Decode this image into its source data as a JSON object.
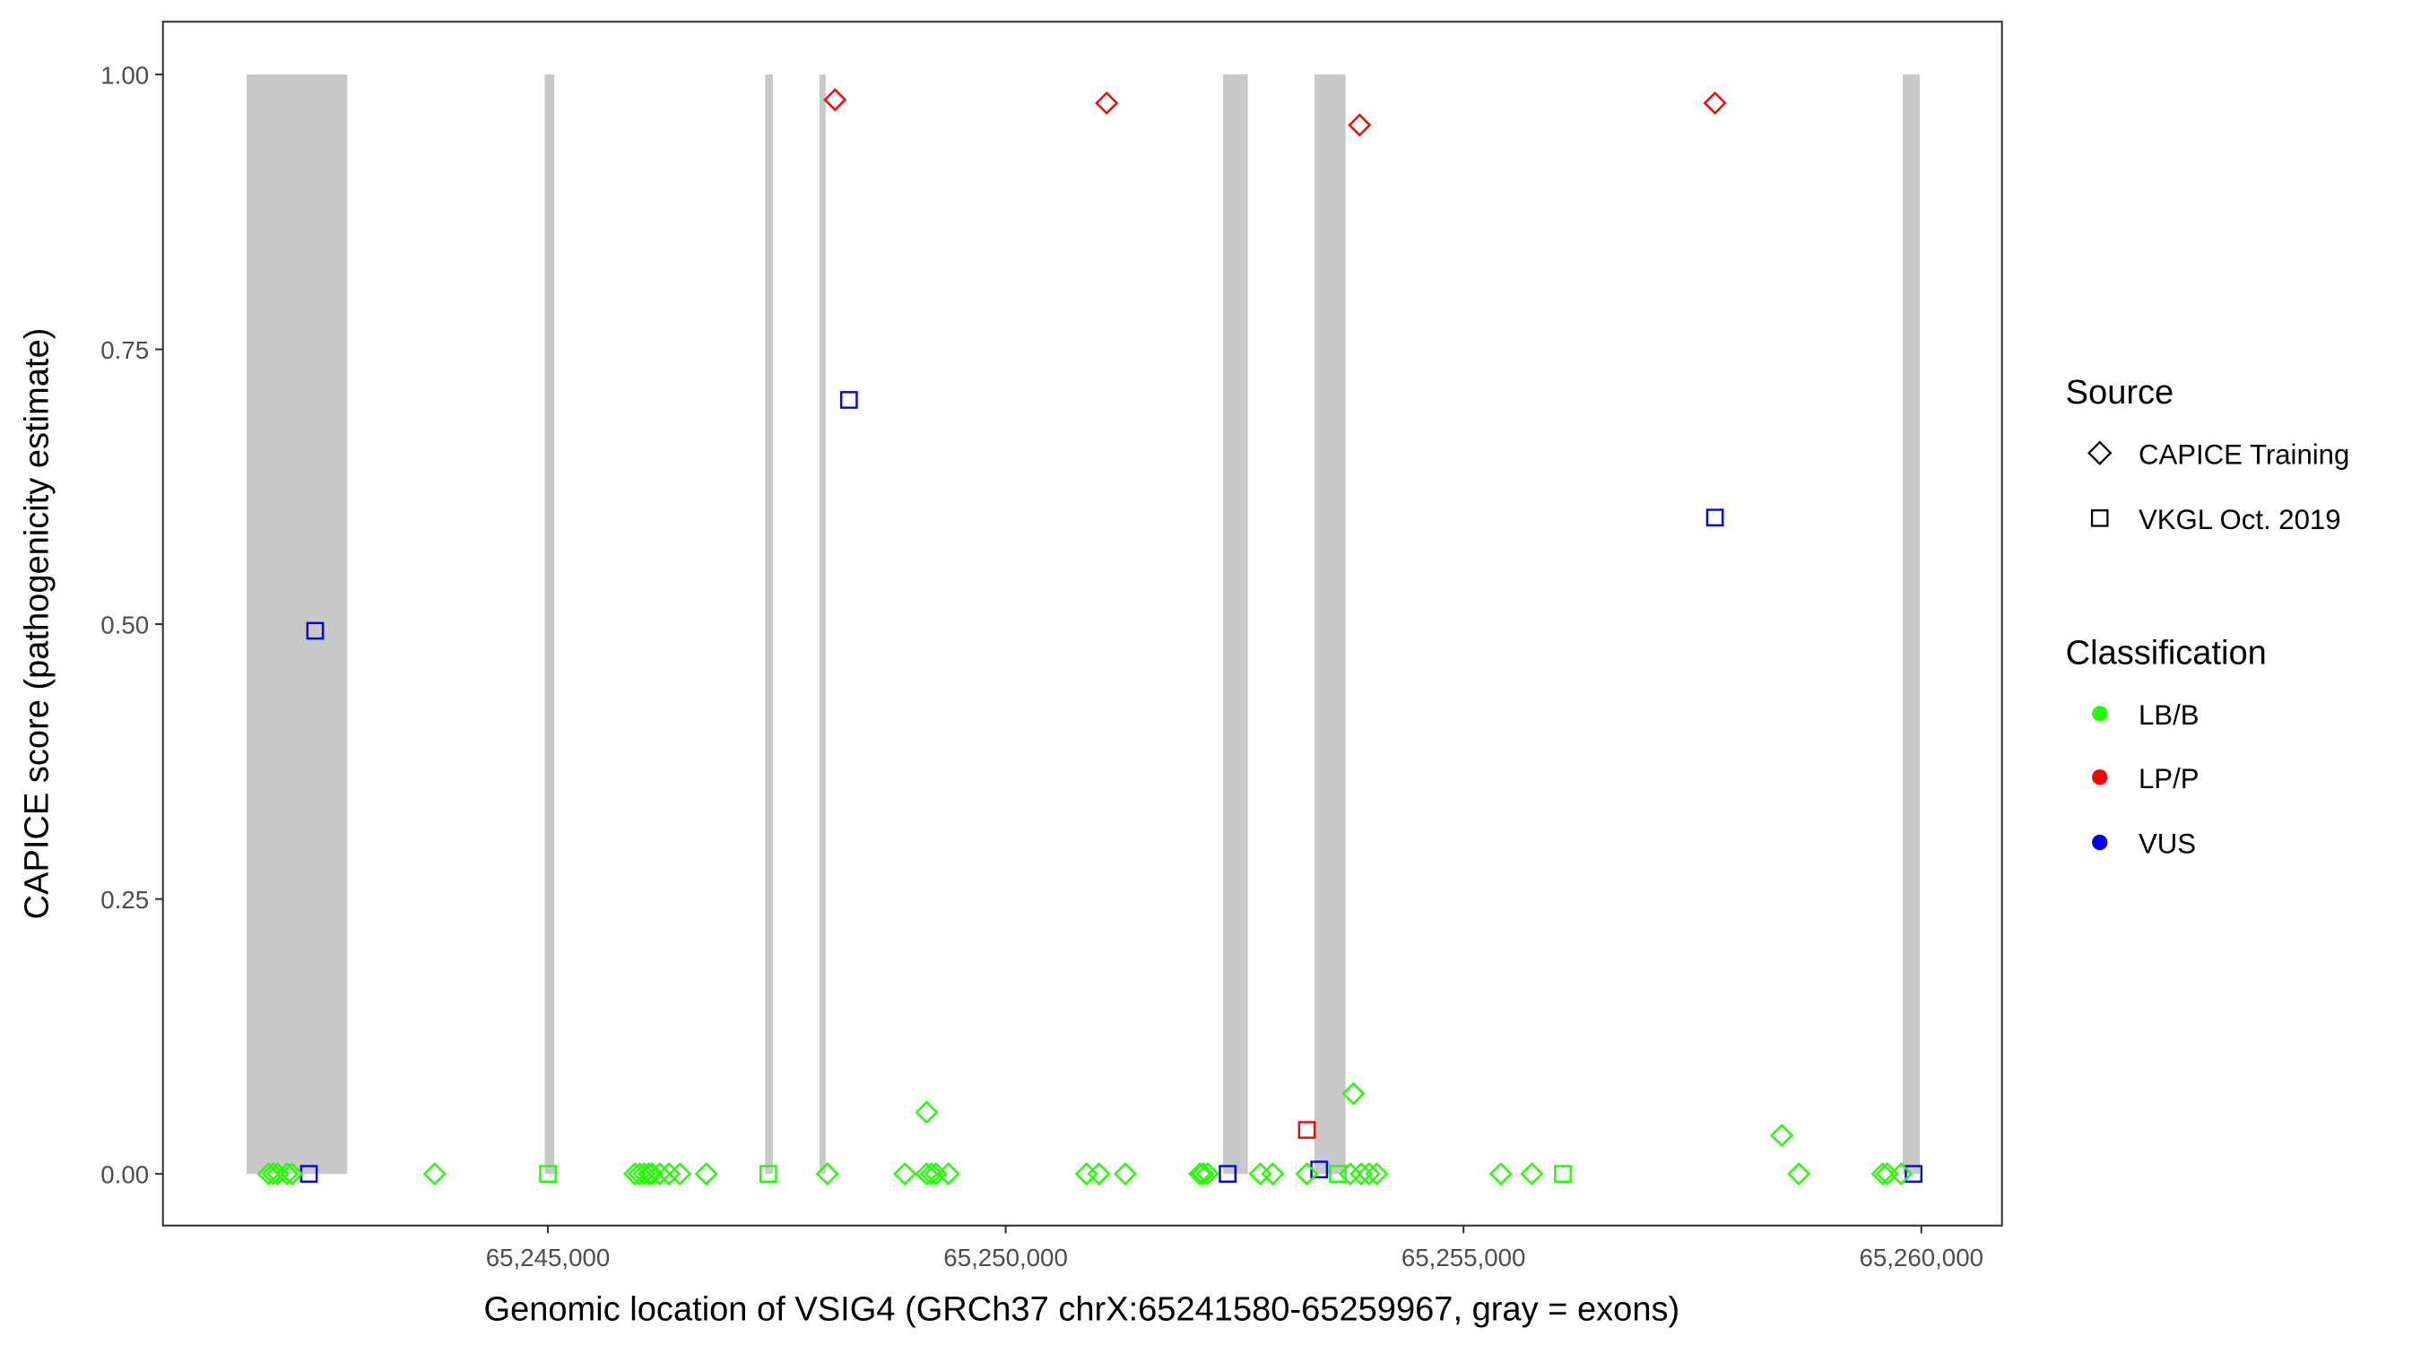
{
  "chart_data": {
    "type": "scatter",
    "xlabel": "Genomic location of VSIG4 (GRCh37 chrX:65241580-65259967, gray = exons)",
    "ylabel": "CAPICE score (pathogenicity estimate)",
    "xlim": [
      65240796,
      65260881
    ],
    "ylim": [
      -0.047,
      1.048
    ],
    "x_ticks": [
      65245000,
      65250000,
      65255000,
      65260000
    ],
    "x_tick_labels": [
      "65,245,000",
      "65,250,000",
      "65,255,000",
      "65,260,000"
    ],
    "y_ticks": [
      0,
      0.25,
      0.5,
      0.75,
      1.0
    ],
    "y_tick_labels": [
      "0.00",
      "0.25",
      "0.50",
      "0.75",
      "1.00"
    ],
    "grid": false,
    "exons": [
      [
        65241710,
        65242810
      ],
      [
        65244965,
        65245070
      ],
      [
        65247373,
        65247458
      ],
      [
        65247966,
        65248034
      ],
      [
        65252373,
        65252644
      ],
      [
        65253373,
        65253712
      ],
      [
        65259797,
        65259983
      ]
    ],
    "exon_color": "#C8C8C8",
    "legend": {
      "placement": "right",
      "source_title": "Source",
      "source_items": [
        {
          "label": "CAPICE Training",
          "shape": "diamond"
        },
        {
          "label": "VKGL Oct. 2019",
          "shape": "square"
        }
      ],
      "class_title": "Classification",
      "class_items": [
        {
          "label": "LB/B",
          "color": "#22FF00"
        },
        {
          "label": "LP/P",
          "color": "#FF0000"
        },
        {
          "label": "VUS",
          "color": "#0000FF"
        }
      ]
    },
    "points": [
      {
        "x": 65248136,
        "y": 0.977,
        "cls": "LP/P",
        "src": "CAPICE Training"
      },
      {
        "x": 65251102,
        "y": 0.974,
        "cls": "LP/P",
        "src": "CAPICE Training"
      },
      {
        "x": 65253865,
        "y": 0.954,
        "cls": "LP/P",
        "src": "CAPICE Training"
      },
      {
        "x": 65257746,
        "y": 0.974,
        "cls": "LP/P",
        "src": "CAPICE Training"
      },
      {
        "x": 65253289,
        "y": 0.04,
        "cls": "LP/P",
        "src": "VKGL Oct. 2019"
      },
      {
        "x": 65248288,
        "y": 0.704,
        "cls": "VUS",
        "src": "VKGL Oct. 2019"
      },
      {
        "x": 65242458,
        "y": 0.494,
        "cls": "VUS",
        "src": "VKGL Oct. 2019"
      },
      {
        "x": 65257746,
        "y": 0.597,
        "cls": "VUS",
        "src": "VKGL Oct. 2019"
      },
      {
        "x": 65242390,
        "y": 0.0,
        "cls": "VUS",
        "src": "VKGL Oct. 2019"
      },
      {
        "x": 65252424,
        "y": 0.0,
        "cls": "VUS",
        "src": "VKGL Oct. 2019"
      },
      {
        "x": 65253424,
        "y": 0.004,
        "cls": "VUS",
        "src": "VKGL Oct. 2019"
      },
      {
        "x": 65259916,
        "y": 0.0,
        "cls": "VUS",
        "src": "VKGL Oct. 2019"
      },
      {
        "x": 65249136,
        "y": 0.056,
        "cls": "LB/B",
        "src": "CAPICE Training"
      },
      {
        "x": 65253797,
        "y": 0.073,
        "cls": "LB/B",
        "src": "CAPICE Training"
      },
      {
        "x": 65258475,
        "y": 0.035,
        "cls": "LB/B",
        "src": "CAPICE Training"
      },
      {
        "x": 65245000,
        "y": 0.0,
        "cls": "LB/B",
        "src": "VKGL Oct. 2019"
      },
      {
        "x": 65247407,
        "y": 0.0,
        "cls": "LB/B",
        "src": "VKGL Oct. 2019"
      },
      {
        "x": 65253628,
        "y": 0.0,
        "cls": "LB/B",
        "src": "VKGL Oct. 2019"
      },
      {
        "x": 65256085,
        "y": 0.0,
        "cls": "LB/B",
        "src": "VKGL Oct. 2019"
      },
      {
        "x": 65241949,
        "y": 0.0,
        "cls": "LB/B",
        "src": "CAPICE Training"
      },
      {
        "x": 65242000,
        "y": 0.0,
        "cls": "LB/B",
        "src": "CAPICE Training"
      },
      {
        "x": 65242051,
        "y": 0.0,
        "cls": "LB/B",
        "src": "CAPICE Training"
      },
      {
        "x": 65242152,
        "y": 0.0,
        "cls": "LB/B",
        "src": "CAPICE Training"
      },
      {
        "x": 65242203,
        "y": 0.0,
        "cls": "LB/B",
        "src": "CAPICE Training"
      },
      {
        "x": 65243763,
        "y": 0.0,
        "cls": "LB/B",
        "src": "CAPICE Training"
      },
      {
        "x": 65245949,
        "y": 0.0,
        "cls": "LB/B",
        "src": "CAPICE Training"
      },
      {
        "x": 65246000,
        "y": 0.0,
        "cls": "LB/B",
        "src": "CAPICE Training"
      },
      {
        "x": 65246051,
        "y": 0.0,
        "cls": "LB/B",
        "src": "CAPICE Training"
      },
      {
        "x": 65246102,
        "y": 0.0,
        "cls": "LB/B",
        "src": "CAPICE Training"
      },
      {
        "x": 65246136,
        "y": 0.0,
        "cls": "LB/B",
        "src": "CAPICE Training"
      },
      {
        "x": 65246220,
        "y": 0.0,
        "cls": "LB/B",
        "src": "CAPICE Training"
      },
      {
        "x": 65246322,
        "y": 0.0,
        "cls": "LB/B",
        "src": "CAPICE Training"
      },
      {
        "x": 65246441,
        "y": 0.0,
        "cls": "LB/B",
        "src": "CAPICE Training"
      },
      {
        "x": 65246729,
        "y": 0.0,
        "cls": "LB/B",
        "src": "CAPICE Training"
      },
      {
        "x": 65248051,
        "y": 0.0,
        "cls": "LB/B",
        "src": "CAPICE Training"
      },
      {
        "x": 65248898,
        "y": 0.0,
        "cls": "LB/B",
        "src": "CAPICE Training"
      },
      {
        "x": 65249136,
        "y": 0.0,
        "cls": "LB/B",
        "src": "CAPICE Training"
      },
      {
        "x": 65249187,
        "y": 0.0,
        "cls": "LB/B",
        "src": "CAPICE Training"
      },
      {
        "x": 65249237,
        "y": 0.0,
        "cls": "LB/B",
        "src": "CAPICE Training"
      },
      {
        "x": 65249373,
        "y": 0.0,
        "cls": "LB/B",
        "src": "CAPICE Training"
      },
      {
        "x": 65250882,
        "y": 0.0,
        "cls": "LB/B",
        "src": "CAPICE Training"
      },
      {
        "x": 65251017,
        "y": 0.0,
        "cls": "LB/B",
        "src": "CAPICE Training"
      },
      {
        "x": 65251305,
        "y": 0.0,
        "cls": "LB/B",
        "src": "CAPICE Training"
      },
      {
        "x": 65252119,
        "y": 0.0,
        "cls": "LB/B",
        "src": "CAPICE Training"
      },
      {
        "x": 65252153,
        "y": 0.0,
        "cls": "LB/B",
        "src": "CAPICE Training"
      },
      {
        "x": 65252204,
        "y": 0.0,
        "cls": "LB/B",
        "src": "CAPICE Training"
      },
      {
        "x": 65252780,
        "y": 0.0,
        "cls": "LB/B",
        "src": "CAPICE Training"
      },
      {
        "x": 65252916,
        "y": 0.0,
        "cls": "LB/B",
        "src": "CAPICE Training"
      },
      {
        "x": 65253289,
        "y": 0.0,
        "cls": "LB/B",
        "src": "CAPICE Training"
      },
      {
        "x": 65253763,
        "y": 0.0,
        "cls": "LB/B",
        "src": "CAPICE Training"
      },
      {
        "x": 65253882,
        "y": 0.0,
        "cls": "LB/B",
        "src": "CAPICE Training"
      },
      {
        "x": 65253967,
        "y": 0.0,
        "cls": "LB/B",
        "src": "CAPICE Training"
      },
      {
        "x": 65254051,
        "y": 0.0,
        "cls": "LB/B",
        "src": "CAPICE Training"
      },
      {
        "x": 65255407,
        "y": 0.0,
        "cls": "LB/B",
        "src": "CAPICE Training"
      },
      {
        "x": 65255746,
        "y": 0.0,
        "cls": "LB/B",
        "src": "CAPICE Training"
      },
      {
        "x": 65258662,
        "y": 0.0,
        "cls": "LB/B",
        "src": "CAPICE Training"
      },
      {
        "x": 65259577,
        "y": 0.0,
        "cls": "LB/B",
        "src": "CAPICE Training"
      },
      {
        "x": 65259628,
        "y": 0.0,
        "cls": "LB/B",
        "src": "CAPICE Training"
      },
      {
        "x": 65259780,
        "y": 0.0,
        "cls": "LB/B",
        "src": "CAPICE Training"
      }
    ]
  }
}
